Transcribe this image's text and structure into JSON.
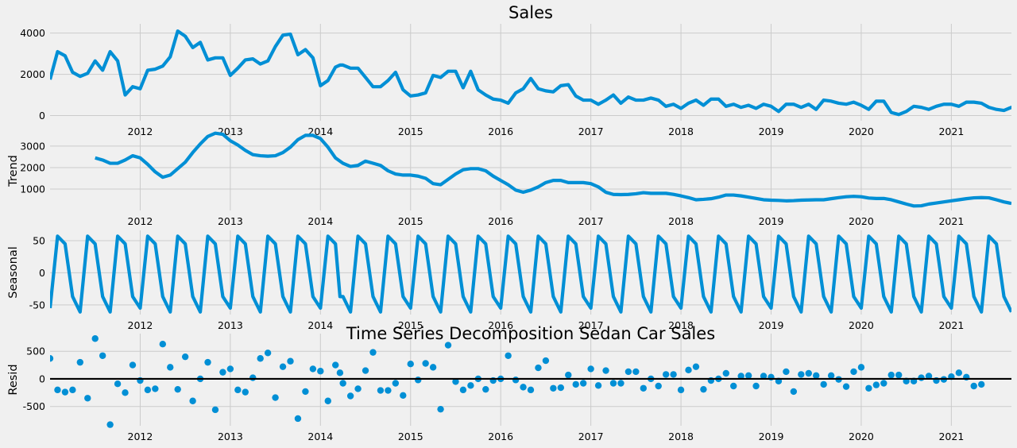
{
  "figure": {
    "title": "Sales",
    "overlay_title": "Time Series Decomposition Sedan Car Sales"
  },
  "colors": {
    "series": "#008fd5",
    "background": "#f0f0f0",
    "grid": "#cbcbcb",
    "zero_line": "#000000"
  },
  "chart_data": [
    {
      "type": "line",
      "panel": "observed",
      "title": "Sales",
      "ylabel": "",
      "x_start": "2011-01",
      "frequency": "monthly",
      "xlim": [
        "2011-01",
        "2021-09"
      ],
      "ylim": [
        -250,
        4450
      ],
      "xticks": [
        "2012",
        "2013",
        "2014",
        "2015",
        "2016",
        "2017",
        "2018",
        "2019",
        "2020",
        "2021"
      ],
      "yticks": [
        0,
        2000,
        4000
      ],
      "grid": true,
      "values": [
        1750,
        3100,
        2900,
        2100,
        1900,
        2050,
        2650,
        2200,
        3100,
        2650,
        1000,
        1400,
        1300,
        2200,
        2250,
        2400,
        2850,
        4100,
        3850,
        3300,
        3550,
        2700,
        2800,
        2800,
        1950,
        2300,
        2700,
        2750,
        2500,
        2650,
        3350,
        3900,
        3950,
        2950,
        3200,
        2800,
        1450,
        1700,
        2350,
        2450,
        2300,
        2300,
        1850,
        1400,
        1400,
        1700,
        2100,
        1250,
        950,
        1000,
        1100,
        1950,
        1850,
        2150,
        2150,
        1350,
        2150,
        1250,
        1000,
        800,
        750,
        600,
        1100,
        1300,
        1800,
        1300,
        1200,
        1150,
        1450,
        1500,
        950,
        750,
        750,
        550,
        750,
        1000,
        600,
        900,
        750,
        750,
        850,
        750,
        450,
        550,
        350,
        600,
        750,
        500,
        800,
        800,
        450,
        550,
        400,
        500,
        350,
        550,
        450,
        200,
        550,
        550,
        400,
        550,
        300,
        750,
        700,
        600,
        550,
        650,
        500,
        300,
        700,
        700,
        150,
        50,
        200,
        450,
        400,
        300,
        450,
        550,
        550,
        450,
        650,
        650,
        600,
        400,
        300,
        250,
        400,
        200
      ],
      "extra_points": [
        {
          "x": "2014-03.6",
          "y": 2450
        }
      ]
    },
    {
      "type": "line",
      "panel": "trend",
      "ylabel": "Trend",
      "x_start": "2011-07",
      "frequency": "monthly",
      "xlim": [
        "2011-01",
        "2021-09"
      ],
      "ylim": [
        0,
        3700
      ],
      "xticks": [
        "2012",
        "2013",
        "2014",
        "2015",
        "2016",
        "2017",
        "2018",
        "2019",
        "2020",
        "2021"
      ],
      "yticks": [
        1000,
        2000,
        3000
      ],
      "grid": true,
      "values": [
        2450,
        2350,
        2200,
        2200,
        2350,
        2550,
        2450,
        2150,
        1800,
        1550,
        1650,
        1950,
        2250,
        2700,
        3100,
        3450,
        3600,
        3550,
        3250,
        3050,
        2800,
        2600,
        2550,
        2530,
        2550,
        2700,
        2950,
        3300,
        3500,
        3500,
        3350,
        2950,
        2450,
        2200,
        2050,
        2100,
        2300,
        2200,
        2100,
        1850,
        1700,
        1650,
        1650,
        1600,
        1500,
        1250,
        1200,
        1450,
        1700,
        1900,
        1950,
        1950,
        1850,
        1600,
        1400,
        1200,
        950,
        850,
        950,
        1100,
        1300,
        1400,
        1400,
        1300,
        1300,
        1300,
        1250,
        1100,
        850,
        750,
        740,
        750,
        780,
        830,
        800,
        800,
        800,
        750,
        680,
        600,
        500,
        520,
        550,
        620,
        720,
        720,
        680,
        620,
        560,
        500,
        480,
        470,
        450,
        460,
        480,
        490,
        500,
        500,
        550,
        600,
        640,
        660,
        640,
        580,
        560,
        560,
        500,
        400,
        300,
        210,
        220,
        300,
        350,
        400,
        450,
        500,
        550,
        590,
        600,
        590,
        500,
        400,
        330
      ]
    },
    {
      "type": "line",
      "panel": "seasonal",
      "ylabel": "Seasonal",
      "x_start": "2011-01",
      "frequency": "monthly",
      "xlim": [
        "2011-01",
        "2021-09"
      ],
      "ylim": [
        -65,
        66
      ],
      "xticks": [
        "2012",
        "2013",
        "2014",
        "2015",
        "2016",
        "2017",
        "2018",
        "2019",
        "2020",
        "2021"
      ],
      "yticks": [
        -50,
        0,
        50
      ],
      "grid": true,
      "cycle": [
        -55,
        57,
        45,
        -37,
        -61,
        57,
        45,
        -37,
        -61,
        57,
        45,
        -37
      ],
      "extra_points": [
        {
          "x": "2014-03.6",
          "y": -37
        }
      ]
    },
    {
      "type": "scatter",
      "panel": "resid",
      "ylabel": "Resid",
      "x_start": "2011-01",
      "frequency": "monthly",
      "xlim": [
        "2011-01",
        "2021-09"
      ],
      "ylim": [
        -850,
        820
      ],
      "xticks": [
        "2012",
        "2013",
        "2014",
        "2015",
        "2016",
        "2017",
        "2018",
        "2019",
        "2020",
        "2021"
      ],
      "yticks": [
        -500,
        0,
        500
      ],
      "zero_line": true,
      "grid": true,
      "values": [
        370,
        -200,
        -240,
        -200,
        300,
        -350,
        730,
        420,
        -830,
        -90,
        -250,
        250,
        -30,
        -200,
        -180,
        630,
        210,
        -190,
        400,
        -400,
        0,
        300,
        -560,
        120,
        180,
        -200,
        -240,
        20,
        370,
        470,
        -340,
        220,
        320,
        -720,
        -230,
        180,
        140,
        -400,
        250,
        -80,
        -310,
        -180,
        150,
        480,
        -210,
        -210,
        -80,
        -300,
        270,
        -20,
        280,
        210,
        -550,
        610,
        -50,
        -200,
        -120,
        0,
        -190,
        -30,
        0,
        420,
        -20,
        -150,
        -200,
        200,
        330,
        -170,
        -160,
        70,
        -100,
        -80,
        180,
        -120,
        150,
        -80,
        -80,
        130,
        130,
        -170,
        0,
        -130,
        80,
        80,
        -200,
        160,
        220,
        -190,
        -30,
        0,
        100,
        -130,
        50,
        60,
        -130,
        50,
        30,
        -40,
        130,
        -230,
        80,
        100,
        60,
        -100,
        60,
        -10,
        -140,
        130,
        210,
        -170,
        -110,
        -80,
        70,
        70,
        -40,
        -40,
        20,
        50,
        -30,
        -10,
        40,
        110,
        30,
        -130,
        -100
      ],
      "extra_points": [
        {
          "x": "2014-03.6",
          "y": 110
        }
      ]
    }
  ]
}
